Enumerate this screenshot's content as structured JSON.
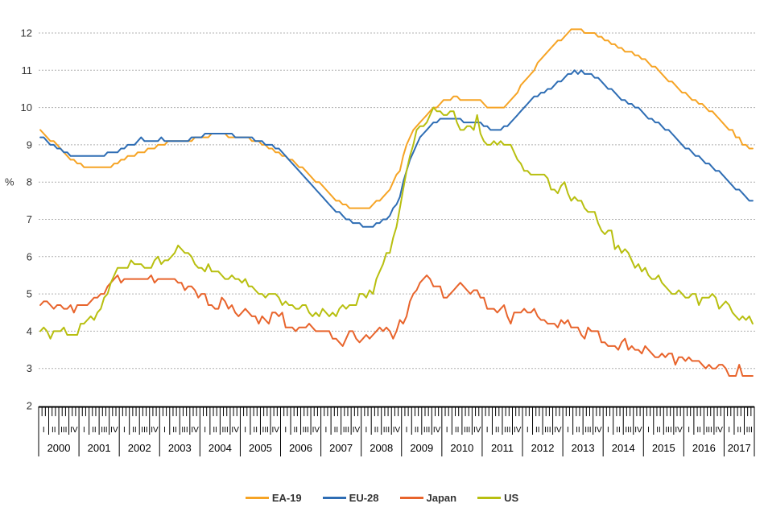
{
  "chart_data": {
    "type": "line",
    "title": "",
    "ylabel": "%",
    "ylim": [
      2,
      12.6
    ],
    "yticks": [
      2,
      3,
      4,
      5,
      6,
      7,
      8,
      9,
      10,
      11,
      12
    ],
    "grid": "horizontal-dashed",
    "grid_color": "#b0b0b0",
    "axis_color": "#000000",
    "text_color": "#333333",
    "legend_position": "bottom",
    "x_axis": {
      "unit": "month",
      "start": "2000-01",
      "end": "2017-09",
      "months_total": 213,
      "quarter_labels": [
        "I",
        "II",
        "III",
        "IV"
      ],
      "years": [
        "2000",
        "2001",
        "2002",
        "2003",
        "2004",
        "2005",
        "2006",
        "2007",
        "2008",
        "2009",
        "2010",
        "2011",
        "2012",
        "2013",
        "2014",
        "2015",
        "2016",
        "2017"
      ]
    },
    "series": [
      {
        "name": "EA-19",
        "color": "#f6a425",
        "values": [
          9.4,
          9.3,
          9.2,
          9.1,
          9.1,
          9.0,
          8.9,
          8.8,
          8.7,
          8.6,
          8.6,
          8.5,
          8.5,
          8.4,
          8.4,
          8.4,
          8.4,
          8.4,
          8.4,
          8.4,
          8.4,
          8.4,
          8.5,
          8.5,
          8.6,
          8.6,
          8.7,
          8.7,
          8.7,
          8.8,
          8.8,
          8.8,
          8.9,
          8.9,
          8.9,
          9.0,
          9.0,
          9.0,
          9.1,
          9.1,
          9.1,
          9.1,
          9.1,
          9.1,
          9.1,
          9.1,
          9.2,
          9.2,
          9.2,
          9.2,
          9.2,
          9.3,
          9.3,
          9.3,
          9.3,
          9.3,
          9.2,
          9.2,
          9.2,
          9.2,
          9.2,
          9.2,
          9.2,
          9.1,
          9.1,
          9.1,
          9.0,
          9.0,
          8.9,
          8.9,
          8.8,
          8.8,
          8.7,
          8.7,
          8.6,
          8.6,
          8.5,
          8.4,
          8.4,
          8.3,
          8.2,
          8.1,
          8.0,
          8.0,
          7.9,
          7.8,
          7.7,
          7.6,
          7.5,
          7.5,
          7.4,
          7.4,
          7.3,
          7.3,
          7.3,
          7.3,
          7.3,
          7.3,
          7.3,
          7.4,
          7.5,
          7.5,
          7.6,
          7.7,
          7.8,
          8.0,
          8.2,
          8.3,
          8.7,
          9.0,
          9.2,
          9.4,
          9.5,
          9.6,
          9.7,
          9.8,
          9.9,
          10.0,
          10.0,
          10.1,
          10.2,
          10.2,
          10.2,
          10.3,
          10.3,
          10.2,
          10.2,
          10.2,
          10.2,
          10.2,
          10.2,
          10.2,
          10.1,
          10.0,
          10.0,
          10.0,
          10.0,
          10.0,
          10.0,
          10.1,
          10.2,
          10.3,
          10.4,
          10.6,
          10.7,
          10.8,
          10.9,
          11.0,
          11.2,
          11.3,
          11.4,
          11.5,
          11.6,
          11.7,
          11.8,
          11.8,
          11.9,
          12.0,
          12.1,
          12.1,
          12.1,
          12.1,
          12.0,
          12.0,
          12.0,
          12.0,
          11.9,
          11.9,
          11.8,
          11.8,
          11.7,
          11.7,
          11.6,
          11.6,
          11.5,
          11.5,
          11.5,
          11.4,
          11.4,
          11.3,
          11.3,
          11.2,
          11.1,
          11.1,
          11.0,
          10.9,
          10.8,
          10.7,
          10.7,
          10.6,
          10.5,
          10.4,
          10.4,
          10.3,
          10.2,
          10.2,
          10.1,
          10.1,
          10.0,
          9.9,
          9.9,
          9.8,
          9.7,
          9.6,
          9.5,
          9.4,
          9.4,
          9.2,
          9.2,
          9.0,
          9.0,
          8.9,
          8.9
        ]
      },
      {
        "name": "EU-28",
        "color": "#2e6db4",
        "values": [
          9.2,
          9.2,
          9.1,
          9.0,
          9.0,
          8.9,
          8.9,
          8.8,
          8.8,
          8.7,
          8.7,
          8.7,
          8.7,
          8.7,
          8.7,
          8.7,
          8.7,
          8.7,
          8.7,
          8.7,
          8.8,
          8.8,
          8.8,
          8.8,
          8.9,
          8.9,
          9.0,
          9.0,
          9.0,
          9.1,
          9.2,
          9.1,
          9.1,
          9.1,
          9.1,
          9.1,
          9.2,
          9.1,
          9.1,
          9.1,
          9.1,
          9.1,
          9.1,
          9.1,
          9.1,
          9.2,
          9.2,
          9.2,
          9.2,
          9.3,
          9.3,
          9.3,
          9.3,
          9.3,
          9.3,
          9.3,
          9.3,
          9.3,
          9.2,
          9.2,
          9.2,
          9.2,
          9.2,
          9.2,
          9.1,
          9.1,
          9.1,
          9.0,
          9.0,
          9.0,
          8.9,
          8.9,
          8.8,
          8.7,
          8.6,
          8.5,
          8.4,
          8.3,
          8.2,
          8.1,
          8.0,
          7.9,
          7.8,
          7.7,
          7.6,
          7.5,
          7.4,
          7.3,
          7.2,
          7.2,
          7.1,
          7.0,
          7.0,
          6.9,
          6.9,
          6.9,
          6.8,
          6.8,
          6.8,
          6.8,
          6.9,
          6.9,
          7.0,
          7.0,
          7.1,
          7.3,
          7.4,
          7.6,
          8.0,
          8.3,
          8.6,
          8.8,
          9.0,
          9.2,
          9.3,
          9.4,
          9.5,
          9.6,
          9.6,
          9.7,
          9.7,
          9.7,
          9.7,
          9.7,
          9.7,
          9.7,
          9.6,
          9.6,
          9.6,
          9.6,
          9.6,
          9.6,
          9.5,
          9.5,
          9.4,
          9.4,
          9.4,
          9.4,
          9.5,
          9.5,
          9.6,
          9.7,
          9.8,
          9.9,
          10.0,
          10.1,
          10.2,
          10.3,
          10.3,
          10.4,
          10.4,
          10.5,
          10.5,
          10.6,
          10.7,
          10.7,
          10.8,
          10.9,
          10.9,
          11.0,
          10.9,
          11.0,
          10.9,
          10.9,
          10.9,
          10.8,
          10.8,
          10.7,
          10.6,
          10.5,
          10.5,
          10.4,
          10.3,
          10.2,
          10.2,
          10.1,
          10.1,
          10.0,
          10.0,
          9.9,
          9.8,
          9.7,
          9.7,
          9.6,
          9.6,
          9.5,
          9.4,
          9.4,
          9.3,
          9.2,
          9.1,
          9.0,
          8.9,
          8.9,
          8.8,
          8.7,
          8.7,
          8.6,
          8.5,
          8.5,
          8.4,
          8.3,
          8.3,
          8.2,
          8.1,
          8.0,
          7.9,
          7.8,
          7.8,
          7.7,
          7.6,
          7.5,
          7.5
        ]
      },
      {
        "name": "Japan",
        "color": "#e8642c",
        "values": [
          4.7,
          4.8,
          4.8,
          4.7,
          4.6,
          4.7,
          4.7,
          4.6,
          4.6,
          4.7,
          4.5,
          4.7,
          4.7,
          4.7,
          4.7,
          4.8,
          4.9,
          4.9,
          5.0,
          5.0,
          5.2,
          5.3,
          5.4,
          5.5,
          5.3,
          5.4,
          5.4,
          5.4,
          5.4,
          5.4,
          5.4,
          5.4,
          5.4,
          5.5,
          5.3,
          5.4,
          5.4,
          5.4,
          5.4,
          5.4,
          5.4,
          5.3,
          5.3,
          5.1,
          5.2,
          5.2,
          5.1,
          4.9,
          5.0,
          5.0,
          4.7,
          4.7,
          4.6,
          4.6,
          4.9,
          4.8,
          4.6,
          4.7,
          4.5,
          4.4,
          4.5,
          4.6,
          4.5,
          4.4,
          4.4,
          4.2,
          4.4,
          4.3,
          4.2,
          4.5,
          4.5,
          4.4,
          4.5,
          4.1,
          4.1,
          4.1,
          4.0,
          4.1,
          4.1,
          4.1,
          4.2,
          4.1,
          4.0,
          4.0,
          4.0,
          4.0,
          4.0,
          3.8,
          3.8,
          3.7,
          3.6,
          3.8,
          4.0,
          4.0,
          3.8,
          3.7,
          3.8,
          3.9,
          3.8,
          3.9,
          4.0,
          4.1,
          4.0,
          4.1,
          4.0,
          3.8,
          4.0,
          4.3,
          4.2,
          4.4,
          4.8,
          5.0,
          5.1,
          5.3,
          5.4,
          5.5,
          5.4,
          5.2,
          5.2,
          5.2,
          4.9,
          4.9,
          5.0,
          5.1,
          5.2,
          5.3,
          5.2,
          5.1,
          5.0,
          5.1,
          5.1,
          4.9,
          4.9,
          4.6,
          4.6,
          4.6,
          4.5,
          4.6,
          4.7,
          4.4,
          4.2,
          4.5,
          4.5,
          4.5,
          4.6,
          4.5,
          4.5,
          4.6,
          4.4,
          4.3,
          4.3,
          4.2,
          4.2,
          4.2,
          4.1,
          4.3,
          4.2,
          4.3,
          4.1,
          4.1,
          4.1,
          3.9,
          3.8,
          4.1,
          4.0,
          4.0,
          4.0,
          3.7,
          3.7,
          3.6,
          3.6,
          3.6,
          3.5,
          3.7,
          3.8,
          3.5,
          3.6,
          3.5,
          3.5,
          3.4,
          3.6,
          3.5,
          3.4,
          3.3,
          3.3,
          3.4,
          3.3,
          3.4,
          3.4,
          3.1,
          3.3,
          3.3,
          3.2,
          3.3,
          3.2,
          3.2,
          3.2,
          3.1,
          3.0,
          3.1,
          3.0,
          3.0,
          3.1,
          3.1,
          3.0,
          2.8,
          2.8,
          2.8,
          3.1,
          2.8,
          2.8,
          2.8,
          2.8
        ]
      },
      {
        "name": "US",
        "color": "#b8bf10",
        "values": [
          4.0,
          4.1,
          4.0,
          3.8,
          4.0,
          4.0,
          4.0,
          4.1,
          3.9,
          3.9,
          3.9,
          3.9,
          4.2,
          4.2,
          4.3,
          4.4,
          4.3,
          4.5,
          4.6,
          4.9,
          5.0,
          5.3,
          5.5,
          5.7,
          5.7,
          5.7,
          5.7,
          5.9,
          5.8,
          5.8,
          5.8,
          5.7,
          5.7,
          5.7,
          5.9,
          6.0,
          5.8,
          5.9,
          5.9,
          6.0,
          6.1,
          6.3,
          6.2,
          6.1,
          6.1,
          6.0,
          5.8,
          5.7,
          5.7,
          5.6,
          5.8,
          5.6,
          5.6,
          5.6,
          5.5,
          5.4,
          5.4,
          5.5,
          5.4,
          5.4,
          5.3,
          5.4,
          5.2,
          5.2,
          5.1,
          5.0,
          5.0,
          4.9,
          5.0,
          5.0,
          5.0,
          4.9,
          4.7,
          4.8,
          4.7,
          4.7,
          4.6,
          4.6,
          4.7,
          4.7,
          4.5,
          4.4,
          4.5,
          4.4,
          4.6,
          4.5,
          4.4,
          4.5,
          4.4,
          4.6,
          4.7,
          4.6,
          4.7,
          4.7,
          4.7,
          5.0,
          5.0,
          4.9,
          5.1,
          5.0,
          5.4,
          5.6,
          5.8,
          6.1,
          6.1,
          6.5,
          6.8,
          7.3,
          7.8,
          8.3,
          8.7,
          9.0,
          9.4,
          9.5,
          9.5,
          9.6,
          9.8,
          10.0,
          9.9,
          9.9,
          9.8,
          9.8,
          9.9,
          9.9,
          9.6,
          9.4,
          9.4,
          9.5,
          9.5,
          9.4,
          9.8,
          9.3,
          9.1,
          9.0,
          9.0,
          9.1,
          9.0,
          9.1,
          9.0,
          9.0,
          9.0,
          8.8,
          8.6,
          8.5,
          8.3,
          8.3,
          8.2,
          8.2,
          8.2,
          8.2,
          8.2,
          8.1,
          7.8,
          7.8,
          7.7,
          7.9,
          8.0,
          7.7,
          7.5,
          7.6,
          7.5,
          7.5,
          7.3,
          7.2,
          7.2,
          7.2,
          6.9,
          6.7,
          6.6,
          6.7,
          6.7,
          6.2,
          6.3,
          6.1,
          6.2,
          6.1,
          5.9,
          5.7,
          5.8,
          5.6,
          5.7,
          5.5,
          5.4,
          5.4,
          5.5,
          5.3,
          5.2,
          5.1,
          5.0,
          5.0,
          5.1,
          5.0,
          4.9,
          4.9,
          5.0,
          5.0,
          4.7,
          4.9,
          4.9,
          4.9,
          5.0,
          4.9,
          4.6,
          4.7,
          4.8,
          4.7,
          4.5,
          4.4,
          4.3,
          4.4,
          4.3,
          4.4,
          4.2
        ]
      }
    ]
  }
}
